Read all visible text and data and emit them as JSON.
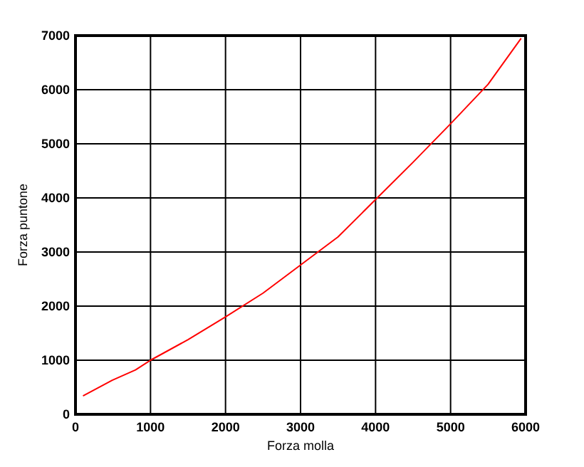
{
  "chart_data": {
    "type": "line",
    "xlabel": "Forza molla",
    "ylabel": "Forza puntone",
    "x": [
      100,
      490,
      800,
      1000,
      1500,
      2000,
      2500,
      3000,
      3500,
      4000,
      4500,
      5000,
      5500,
      5940
    ],
    "series": [
      {
        "color": "#ff0000",
        "values": [
          340,
          630,
          820,
          1000,
          1380,
          1800,
          2240,
          2760,
          3280,
          3970,
          4660,
          5370,
          6100,
          6950
        ]
      }
    ],
    "xlim": [
      0,
      6000
    ],
    "xticks": [
      0,
      1000,
      2000,
      3000,
      4000,
      5000,
      6000
    ],
    "ylim": [
      0,
      7000
    ],
    "yticks": [
      0,
      1000,
      2000,
      3000,
      4000,
      5000,
      6000,
      7000
    ],
    "grid": true,
    "line_style": "solid",
    "marker": "none"
  }
}
